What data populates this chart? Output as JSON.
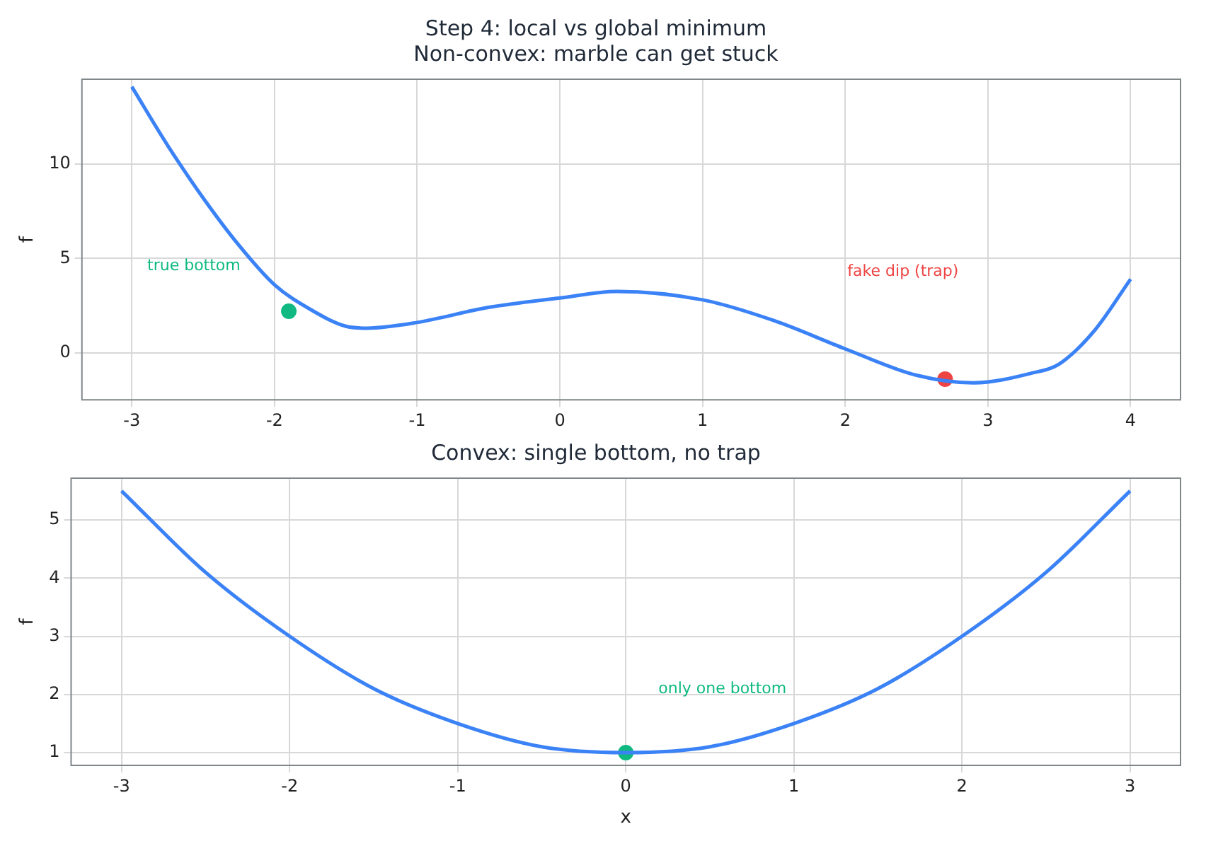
{
  "chart_data": [
    {
      "type": "line",
      "title": "Step 4: local vs global minimum",
      "subtitle": "Non-convex: marble can get stuck",
      "ylabel": "f",
      "xlim": [
        -3.35,
        4.35
      ],
      "xticks": [
        -3,
        -2,
        -1,
        0,
        1,
        2,
        3,
        4
      ],
      "ylim": [
        -2.5,
        14.5
      ],
      "yticks": [
        0,
        5,
        10
      ],
      "grid": true,
      "series": [
        {
          "color": "#3b82f6",
          "marker": "none",
          "x": [
            -3,
            -2.75,
            -2.5,
            -2.25,
            -2,
            -1.75,
            -1.5,
            -1.35,
            -1,
            -0.5,
            0,
            0.4,
            1,
            1.5,
            2,
            2.5,
            2.9,
            3.3,
            3.5,
            3.75,
            4
          ],
          "values": [
            14.1,
            11,
            8.2,
            5.7,
            3.6,
            2.3,
            1.4,
            1.3,
            1.6,
            2.4,
            2.9,
            3.25,
            2.8,
            1.7,
            0.2,
            -1.2,
            -1.6,
            -1.1,
            -0.6,
            1.2,
            3.9
          ]
        },
        {
          "type": "scatter",
          "color": "#10b981",
          "marker": "circle",
          "x": [
            -1.9
          ],
          "values": [
            2.2
          ]
        },
        {
          "type": "scatter",
          "color": "#ef4444",
          "marker": "circle",
          "x": [
            2.7
          ],
          "values": [
            -1.4
          ]
        }
      ],
      "annotations": [
        "true bottom",
        "fake dip (trap)"
      ]
    },
    {
      "type": "line",
      "title": "Convex: single bottom, no trap",
      "xlabel": "x",
      "ylabel": "f",
      "xlim": [
        -3.3,
        3.3
      ],
      "xticks": [
        -3,
        -2,
        -1,
        0,
        1,
        2,
        3
      ],
      "ylim": [
        0.78,
        5.72
      ],
      "yticks": [
        1,
        2,
        3,
        4,
        5
      ],
      "grid": true,
      "series": [
        {
          "color": "#3b82f6",
          "marker": "none",
          "x": [
            -3,
            -2.5,
            -2,
            -1.5,
            -1,
            -0.5,
            0,
            0.5,
            1,
            1.5,
            2,
            2.5,
            3
          ],
          "values": [
            5.5,
            4.1,
            3,
            2.1,
            1.5,
            1.1,
            1,
            1.1,
            1.5,
            2.1,
            3,
            4.1,
            5.5
          ]
        },
        {
          "type": "scatter",
          "color": "#10b981",
          "marker": "circle",
          "x": [
            0
          ],
          "values": [
            1
          ]
        }
      ],
      "annotations": [
        "only one bottom"
      ]
    }
  ]
}
